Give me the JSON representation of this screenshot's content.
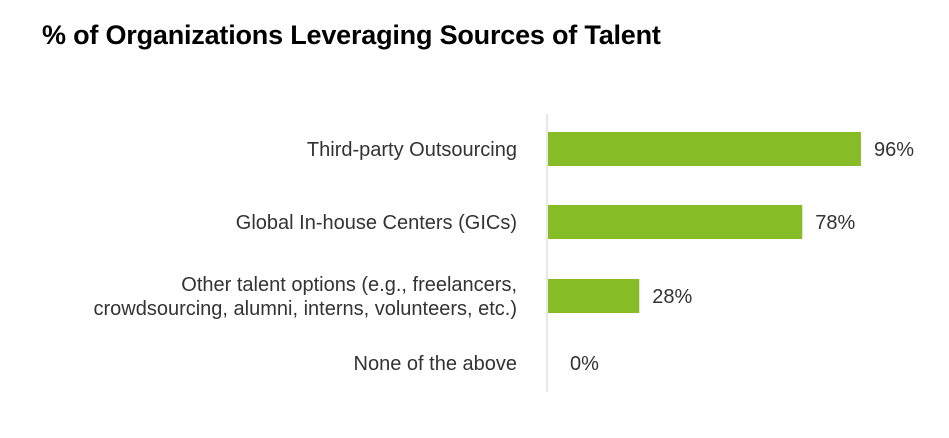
{
  "chart_data": {
    "type": "bar",
    "orientation": "horizontal",
    "title": "% of Organizations Leveraging Sources of Talent",
    "categories": [
      [
        "Third-party Outsourcing"
      ],
      [
        "Global In-house Centers (GICs)"
      ],
      [
        "Other talent options (e.g., freelancers,",
        "crowdsourcing, alumni, interns, volunteers, etc.)"
      ],
      [
        "None of the above"
      ]
    ],
    "values": [
      96,
      78,
      28,
      0
    ],
    "value_labels": [
      "96%",
      "78%",
      "28%",
      "0%"
    ],
    "xlim": [
      0,
      100
    ],
    "grid": false,
    "legend": "none",
    "colors": {
      "bar": "#86bc25",
      "axis": "#d0d0d0",
      "text": "#333333"
    }
  }
}
